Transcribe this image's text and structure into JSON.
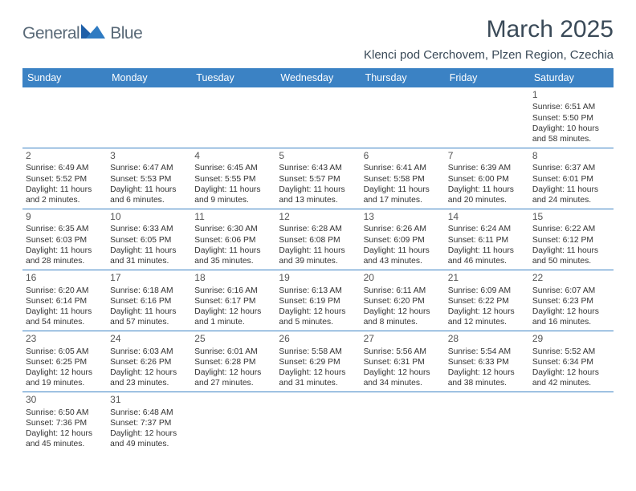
{
  "brand": {
    "name_a": "General",
    "name_b": "Blue"
  },
  "title": "March 2025",
  "location": "Klenci pod Cerchovem, Plzen Region, Czechia",
  "colors": {
    "header_bg": "#3b82c4",
    "header_text": "#ffffff",
    "border": "#3b82c4",
    "text": "#333333",
    "title_text": "#3a4a58",
    "logo_text": "#5a6a78"
  },
  "day_headers": [
    "Sunday",
    "Monday",
    "Tuesday",
    "Wednesday",
    "Thursday",
    "Friday",
    "Saturday"
  ],
  "weeks": [
    [
      null,
      null,
      null,
      null,
      null,
      null,
      {
        "n": "1",
        "sunrise": "6:51 AM",
        "sunset": "5:50 PM",
        "daylight": "10 hours and 58 minutes."
      }
    ],
    [
      {
        "n": "2",
        "sunrise": "6:49 AM",
        "sunset": "5:52 PM",
        "daylight": "11 hours and 2 minutes."
      },
      {
        "n": "3",
        "sunrise": "6:47 AM",
        "sunset": "5:53 PM",
        "daylight": "11 hours and 6 minutes."
      },
      {
        "n": "4",
        "sunrise": "6:45 AM",
        "sunset": "5:55 PM",
        "daylight": "11 hours and 9 minutes."
      },
      {
        "n": "5",
        "sunrise": "6:43 AM",
        "sunset": "5:57 PM",
        "daylight": "11 hours and 13 minutes."
      },
      {
        "n": "6",
        "sunrise": "6:41 AM",
        "sunset": "5:58 PM",
        "daylight": "11 hours and 17 minutes."
      },
      {
        "n": "7",
        "sunrise": "6:39 AM",
        "sunset": "6:00 PM",
        "daylight": "11 hours and 20 minutes."
      },
      {
        "n": "8",
        "sunrise": "6:37 AM",
        "sunset": "6:01 PM",
        "daylight": "11 hours and 24 minutes."
      }
    ],
    [
      {
        "n": "9",
        "sunrise": "6:35 AM",
        "sunset": "6:03 PM",
        "daylight": "11 hours and 28 minutes."
      },
      {
        "n": "10",
        "sunrise": "6:33 AM",
        "sunset": "6:05 PM",
        "daylight": "11 hours and 31 minutes."
      },
      {
        "n": "11",
        "sunrise": "6:30 AM",
        "sunset": "6:06 PM",
        "daylight": "11 hours and 35 minutes."
      },
      {
        "n": "12",
        "sunrise": "6:28 AM",
        "sunset": "6:08 PM",
        "daylight": "11 hours and 39 minutes."
      },
      {
        "n": "13",
        "sunrise": "6:26 AM",
        "sunset": "6:09 PM",
        "daylight": "11 hours and 43 minutes."
      },
      {
        "n": "14",
        "sunrise": "6:24 AM",
        "sunset": "6:11 PM",
        "daylight": "11 hours and 46 minutes."
      },
      {
        "n": "15",
        "sunrise": "6:22 AM",
        "sunset": "6:12 PM",
        "daylight": "11 hours and 50 minutes."
      }
    ],
    [
      {
        "n": "16",
        "sunrise": "6:20 AM",
        "sunset": "6:14 PM",
        "daylight": "11 hours and 54 minutes."
      },
      {
        "n": "17",
        "sunrise": "6:18 AM",
        "sunset": "6:16 PM",
        "daylight": "11 hours and 57 minutes."
      },
      {
        "n": "18",
        "sunrise": "6:16 AM",
        "sunset": "6:17 PM",
        "daylight": "12 hours and 1 minute."
      },
      {
        "n": "19",
        "sunrise": "6:13 AM",
        "sunset": "6:19 PM",
        "daylight": "12 hours and 5 minutes."
      },
      {
        "n": "20",
        "sunrise": "6:11 AM",
        "sunset": "6:20 PM",
        "daylight": "12 hours and 8 minutes."
      },
      {
        "n": "21",
        "sunrise": "6:09 AM",
        "sunset": "6:22 PM",
        "daylight": "12 hours and 12 minutes."
      },
      {
        "n": "22",
        "sunrise": "6:07 AM",
        "sunset": "6:23 PM",
        "daylight": "12 hours and 16 minutes."
      }
    ],
    [
      {
        "n": "23",
        "sunrise": "6:05 AM",
        "sunset": "6:25 PM",
        "daylight": "12 hours and 19 minutes."
      },
      {
        "n": "24",
        "sunrise": "6:03 AM",
        "sunset": "6:26 PM",
        "daylight": "12 hours and 23 minutes."
      },
      {
        "n": "25",
        "sunrise": "6:01 AM",
        "sunset": "6:28 PM",
        "daylight": "12 hours and 27 minutes."
      },
      {
        "n": "26",
        "sunrise": "5:58 AM",
        "sunset": "6:29 PM",
        "daylight": "12 hours and 31 minutes."
      },
      {
        "n": "27",
        "sunrise": "5:56 AM",
        "sunset": "6:31 PM",
        "daylight": "12 hours and 34 minutes."
      },
      {
        "n": "28",
        "sunrise": "5:54 AM",
        "sunset": "6:33 PM",
        "daylight": "12 hours and 38 minutes."
      },
      {
        "n": "29",
        "sunrise": "5:52 AM",
        "sunset": "6:34 PM",
        "daylight": "12 hours and 42 minutes."
      }
    ],
    [
      {
        "n": "30",
        "sunrise": "6:50 AM",
        "sunset": "7:36 PM",
        "daylight": "12 hours and 45 minutes."
      },
      {
        "n": "31",
        "sunrise": "6:48 AM",
        "sunset": "7:37 PM",
        "daylight": "12 hours and 49 minutes."
      },
      null,
      null,
      null,
      null,
      null
    ]
  ],
  "labels": {
    "sunrise": "Sunrise:",
    "sunset": "Sunset:",
    "daylight": "Daylight:"
  }
}
